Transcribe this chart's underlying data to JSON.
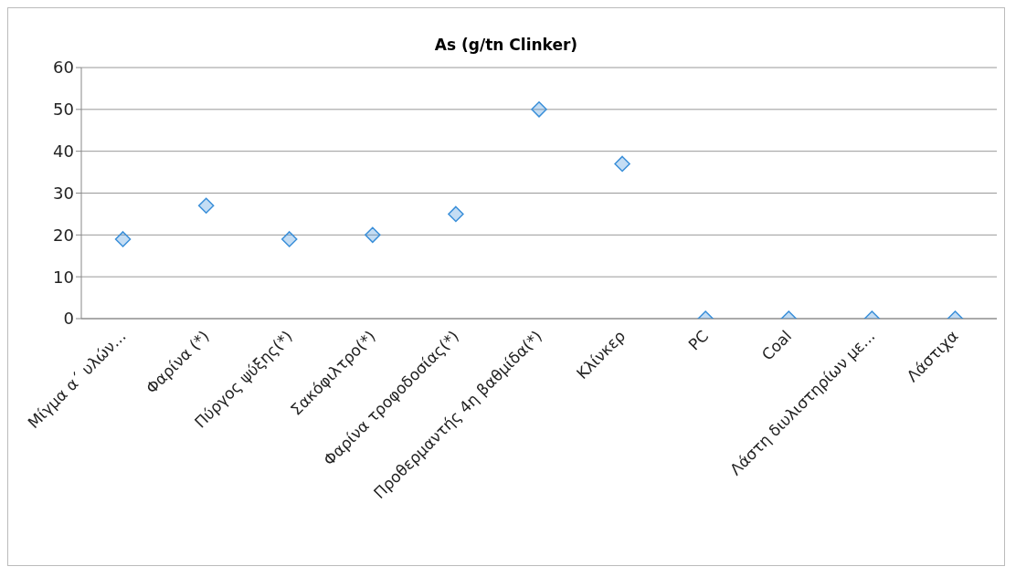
{
  "chart_data": {
    "type": "scatter",
    "title": "As (g/tn Clinker)",
    "categories": [
      "Μίγμα α΄ υλών...",
      "Φαρίνα (*)",
      "Πύργος ψύξης(*)",
      "Σακόφιλτρο(*)",
      "Φαρίνα τροφοδοσίας(*)",
      "Προθερμαντής 4η βαθμίδα(*)",
      "Κλίνκερ",
      "PC",
      "Coal",
      "Λάστη διυλιστηρίων με...",
      "Λάστιχα"
    ],
    "series": [
      {
        "color": "#3a8fd9",
        "values": [
          19,
          27,
          19,
          20,
          25,
          50,
          37,
          0,
          0,
          0,
          0
        ]
      }
    ],
    "ylim": [
      0,
      60
    ],
    "yticks": [
      0,
      10,
      20,
      30,
      40,
      50,
      60
    ],
    "grid": "y",
    "marker": "diamond",
    "legend": false
  }
}
